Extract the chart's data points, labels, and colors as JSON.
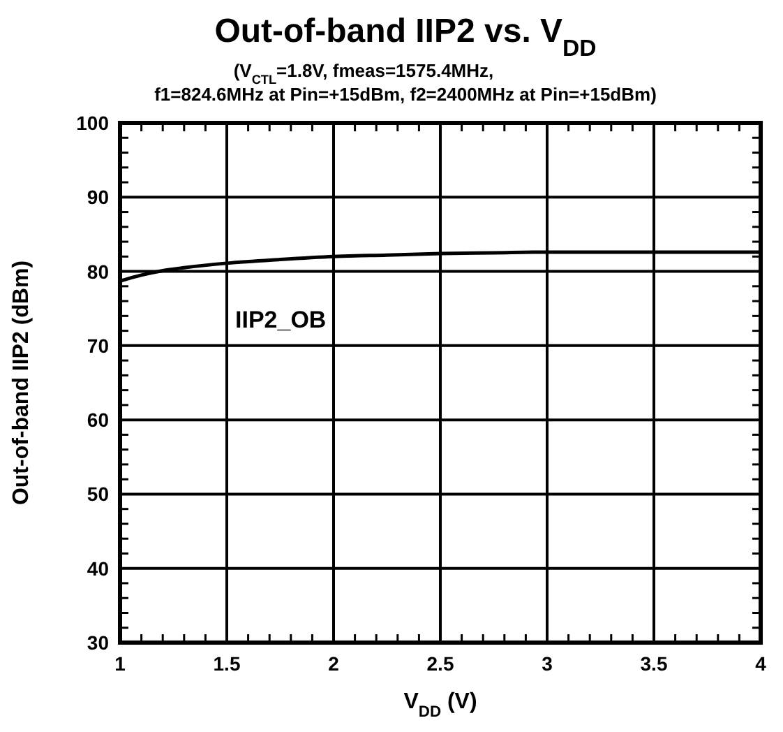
{
  "chart_data": {
    "type": "line",
    "title": "Out-of-band IIP2 vs. V$_{DD}$",
    "subtitle": "(V$_{CTL}$=1.8V, fmeas=1575.4MHz,\nf1=824.6MHz at Pin=+15dBm, f2=2400MHz at Pin=+15dBm)",
    "xlabel": "V$_{DD}$ (V)",
    "ylabel": "Out-of-band IIP2 (dBm)",
    "x": [
      1,
      1.1,
      1.2,
      1.3,
      1.5,
      1.75,
      2,
      2.25,
      2.5,
      2.75,
      3,
      3.5,
      4
    ],
    "series": [
      {
        "name": "IIP2_OB",
        "color": "#000000",
        "values": [
          78.7,
          79.5,
          80.1,
          80.5,
          81.1,
          81.6,
          82.0,
          82.2,
          82.4,
          82.5,
          82.6,
          82.6,
          82.6
        ]
      }
    ],
    "xlim": [
      1,
      4
    ],
    "xticks": [
      1,
      1.5,
      2,
      2.5,
      3,
      3.5,
      4
    ],
    "ylim": [
      30,
      100
    ],
    "yticks": [
      30,
      40,
      50,
      60,
      70,
      80,
      90,
      100
    ],
    "grid": true,
    "marker": "none",
    "line_style": "solid"
  }
}
